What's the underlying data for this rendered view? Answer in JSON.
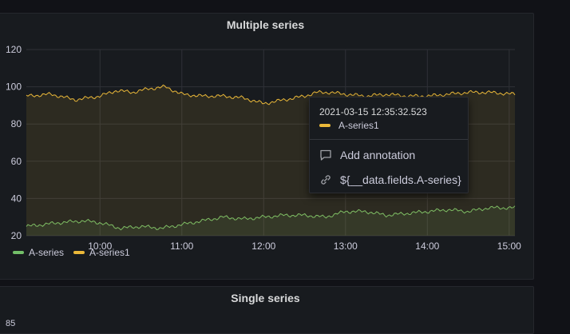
{
  "panels": {
    "multiple": {
      "title": "Multiple series"
    },
    "single": {
      "title": "Single series",
      "first_y_tick": "85"
    }
  },
  "tooltip": {
    "time": "2021-03-15 12:35:32.523",
    "series_name": "A-series1",
    "series_color": "#eab839",
    "add_annotation": "Add annotation",
    "fields_link": "${__data.fields.A-series}"
  },
  "legend": [
    {
      "name": "A-series",
      "color": "#73bf69"
    },
    {
      "name": "A-series1",
      "color": "#eab839"
    }
  ],
  "chart_data": {
    "type": "line",
    "title": "Multiple series",
    "x_ticks": [
      "10:00",
      "11:00",
      "12:00",
      "13:00",
      "14:00",
      "15:00"
    ],
    "y_ticks": [
      20,
      40,
      60,
      80,
      100,
      120
    ],
    "ylim": [
      20,
      120
    ],
    "xlim_hours": [
      9.1,
      15.07
    ],
    "grid": true,
    "legend_placement": "bottom-left",
    "series": [
      {
        "name": "A-series",
        "color": "#73bf69",
        "x": [
          9.1,
          9.5,
          9.8,
          10.0,
          10.25,
          10.5,
          10.75,
          11.0,
          11.25,
          11.5,
          11.75,
          12.0,
          12.25,
          12.5,
          12.75,
          13.0,
          13.25,
          13.5,
          13.75,
          14.0,
          14.25,
          14.5,
          14.75,
          15.07
        ],
        "y": [
          25,
          27,
          28,
          27,
          24,
          25,
          24,
          26,
          28,
          30,
          29,
          30,
          31,
          31,
          30,
          33,
          33,
          31,
          32,
          33,
          34,
          33,
          35,
          35
        ]
      },
      {
        "name": "A-series1",
        "color": "#eab839",
        "x": [
          9.1,
          9.4,
          9.7,
          10.0,
          10.2,
          10.4,
          10.6,
          10.8,
          11.0,
          11.25,
          11.5,
          11.75,
          12.0,
          12.25,
          12.5,
          12.65,
          12.8,
          13.0,
          13.25,
          13.5,
          13.75,
          14.0,
          14.25,
          14.5,
          14.75,
          15.07
        ],
        "y": [
          95,
          96,
          93,
          95,
          98,
          97,
          99,
          100,
          96,
          95,
          95,
          94,
          91,
          93,
          95,
          97,
          97,
          96,
          95,
          96,
          95,
          95,
          96,
          97,
          97,
          96
        ]
      }
    ]
  }
}
